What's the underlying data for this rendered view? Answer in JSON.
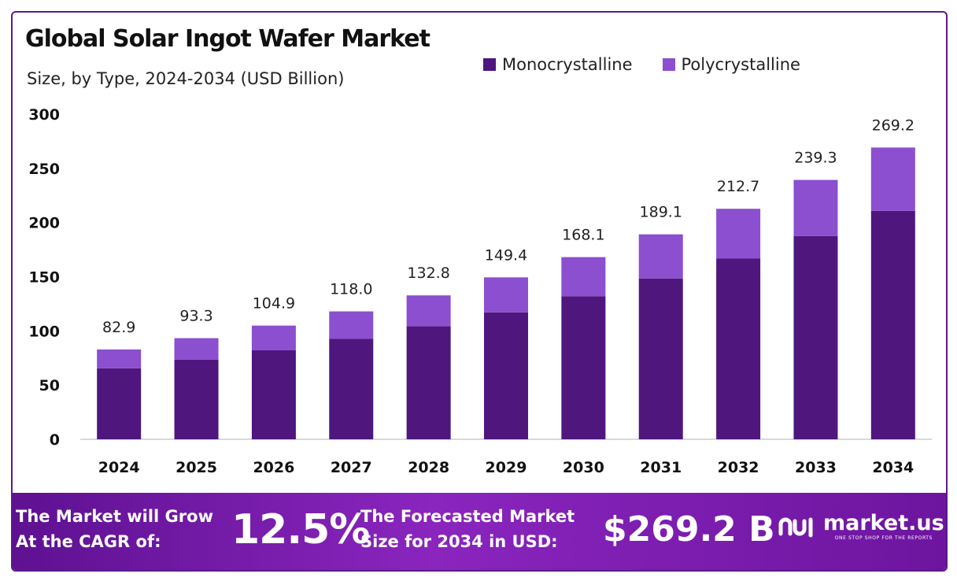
{
  "chart_data": {
    "type": "bar",
    "stacked": true,
    "title": "Global Solar Ingot Wafer Market",
    "subtitle": "Size, by Type, 2024-2034 (USD Billion)",
    "categories": [
      "2024",
      "2025",
      "2026",
      "2027",
      "2028",
      "2029",
      "2030",
      "2031",
      "2032",
      "2033",
      "2034"
    ],
    "series": [
      {
        "name": "Monocrystalline",
        "color": "#4f167e",
        "values": [
          65.5,
          73.4,
          82.1,
          92.6,
          104.3,
          117.1,
          131.9,
          148.4,
          166.7,
          187.6,
          210.8
        ]
      },
      {
        "name": "Polycrystalline",
        "color": "#8b4fcf",
        "values": [
          17.4,
          19.9,
          22.8,
          25.4,
          28.5,
          32.3,
          36.2,
          40.7,
          46.0,
          51.7,
          58.4
        ]
      }
    ],
    "totals": [
      "82.9",
      "93.3",
      "104.9",
      "118.0",
      "132.8",
      "149.4",
      "168.1",
      "189.1",
      "212.7",
      "239.3",
      "269.2"
    ],
    "total_values": [
      82.9,
      93.3,
      104.9,
      118.0,
      132.8,
      149.4,
      168.1,
      189.1,
      212.7,
      239.3,
      269.2
    ],
    "ylim": [
      0,
      300
    ],
    "yticks": [
      0,
      50,
      100,
      150,
      200,
      250,
      300
    ],
    "grid": false,
    "legend_position": "top-right"
  },
  "footer": {
    "cagr_text_line1": "The Market will Grow",
    "cagr_text_line2": "At the CAGR of:",
    "cagr_value": "12.5%",
    "forecast_text_line1": "The Forecasted Market",
    "forecast_text_line2": "Size for 2034 in USD:",
    "forecast_value": "$269.2 B"
  },
  "brand": {
    "name": "market.us",
    "tagline": "ONE STOP SHOP FOR THE REPORTS",
    "icon": "market-us-logo-icon"
  }
}
